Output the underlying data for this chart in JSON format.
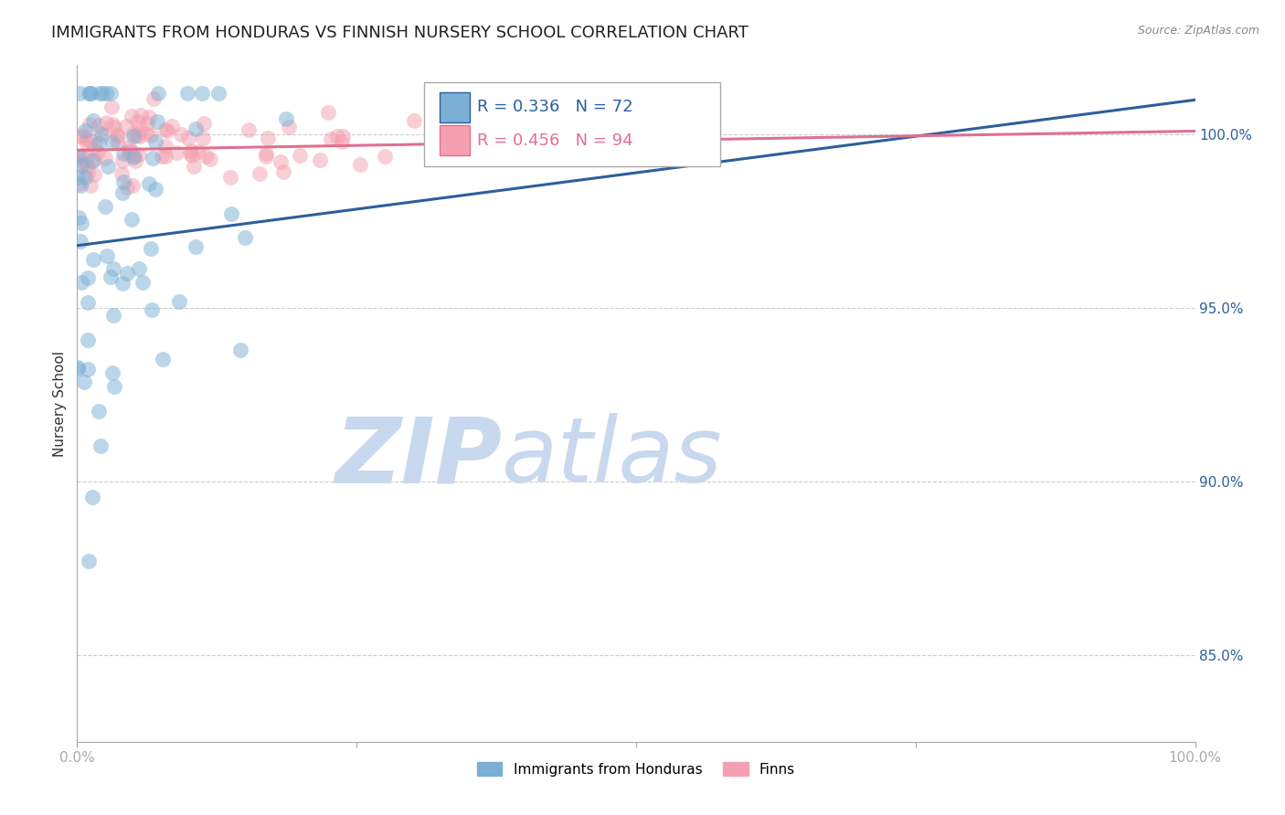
{
  "title": "IMMIGRANTS FROM HONDURAS VS FINNISH NURSERY SCHOOL CORRELATION CHART",
  "source_text": "Source: ZipAtlas.com",
  "ylabel": "Nursery School",
  "legend_label_blue": "Immigrants from Honduras",
  "legend_label_pink": "Finns",
  "r_blue": 0.336,
  "n_blue": 72,
  "r_pink": 0.456,
  "n_pink": 94,
  "y_ticks": [
    85.0,
    90.0,
    95.0,
    100.0
  ],
  "y_tick_labels": [
    "85.0%",
    "90.0%",
    "95.0%",
    "100.0%"
  ],
  "xlim": [
    0.0,
    1.0
  ],
  "ylim": [
    82.5,
    102.0
  ],
  "color_blue": "#7bafd4",
  "color_pink": "#f4a0b0",
  "color_blue_line": "#2c5f9e",
  "color_pink_line": "#e07090",
  "watermark_zip_color": "#c8d8ee",
  "watermark_atlas_color": "#c8d8ee",
  "background_color": "#ffffff",
  "grid_color": "#cccccc",
  "title_fontsize": 13,
  "axis_label_fontsize": 11,
  "tick_label_fontsize": 11,
  "seed": 99,
  "blue_trend_x0": 0.0,
  "blue_trend_y0": 96.8,
  "blue_trend_x1": 1.0,
  "blue_trend_y1": 101.0,
  "pink_trend_x0": 0.0,
  "pink_trend_y0": 99.55,
  "pink_trend_x1": 1.0,
  "pink_trend_y1": 100.1
}
